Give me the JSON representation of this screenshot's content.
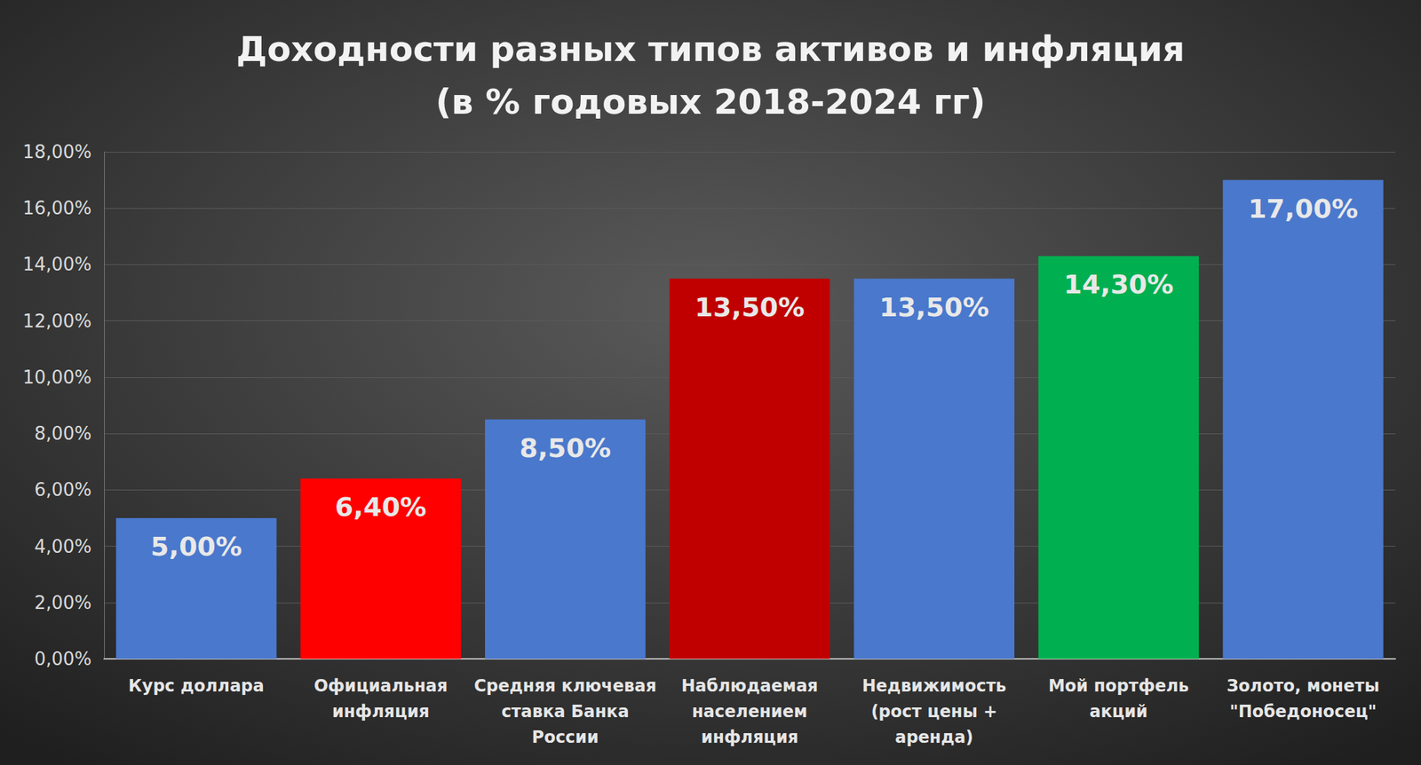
{
  "chart_data": {
    "type": "bar",
    "title": "Доходности разных типов активов и инфляция\n(в % годовых 2018-2024 гг)",
    "categories": [
      "Курс доллара",
      "Официальная\nинфляция",
      "Средняя ключевая\nставка Банка\nРоссии",
      "Наблюдаемая\nнаселением\nинфляция",
      "Недвижимость\n(рост цены +\nаренда)",
      "Мой портфель\nакций",
      "Золото, монеты\n\"Победоносец\""
    ],
    "values": [
      5,
      6.4,
      8.5,
      13.5,
      13.5,
      14.3,
      17
    ],
    "value_labels": [
      "5,00%",
      "6,40%",
      "8,50%",
      "13,50%",
      "13,50%",
      "14,30%",
      "17,00%"
    ],
    "colors": [
      "#4a78cc",
      "#ff0000",
      "#4a78cc",
      "#c00000",
      "#4a78cc",
      "#00b050",
      "#4a78cc"
    ],
    "ylim": [
      0,
      18
    ],
    "yticks": [
      {
        "value": 0,
        "label": "0,00%"
      },
      {
        "value": 2,
        "label": "2,00%"
      },
      {
        "value": 4,
        "label": "4,00%"
      },
      {
        "value": 6,
        "label": "6,00%"
      },
      {
        "value": 8,
        "label": "8,00%"
      },
      {
        "value": 10,
        "label": "10,00%"
      },
      {
        "value": 12,
        "label": "12,00%"
      },
      {
        "value": 14,
        "label": "14,00%"
      },
      {
        "value": 16,
        "label": "16,00%"
      },
      {
        "value": 18,
        "label": "18,00%"
      }
    ],
    "grid": true,
    "data_labels": true
  }
}
